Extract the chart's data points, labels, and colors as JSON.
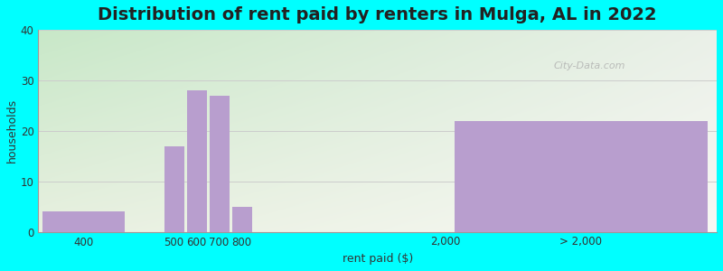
{
  "title": "Distribution of rent paid by renters in Mulga, AL in 2022",
  "xlabel": "rent paid ($)",
  "ylabel": "households",
  "background_color": "#00ffff",
  "plot_bg_color_topleft": "#d8eeda",
  "plot_bg_color_right": "#f5f5f0",
  "bar_color": "#b89ece",
  "ylim": [
    0,
    40
  ],
  "yticks": [
    0,
    10,
    20,
    30,
    40
  ],
  "grid_color": "#cccccc",
  "title_fontsize": 14,
  "axis_label_fontsize": 9,
  "tick_fontsize": 8.5,
  "watermark": "City-Data.com",
  "bars": [
    {
      "label": "400",
      "x": 100,
      "value": 4
    },
    {
      "label": "500",
      "x": 200,
      "value": 17
    },
    {
      "label": "600",
      "x": 225,
      "value": 28
    },
    {
      "label": "700",
      "x": 250,
      "value": 27
    },
    {
      "label": "800",
      "x": 275,
      "value": 5
    },
    {
      "label": "2,000",
      "x": 500,
      "value": 0
    },
    {
      "label": "> 2,000",
      "x": 650,
      "value": 22
    }
  ],
  "xlim": [
    50,
    800
  ],
  "xtick_positions": [
    100,
    200,
    225,
    250,
    275,
    500,
    650
  ],
  "xtick_labels": [
    "400",
    "500",
    "600",
    "700",
    "800",
    "2,000",
    "> 2,000"
  ],
  "bar_widths_data": [
    90,
    22,
    22,
    22,
    22,
    0,
    280
  ]
}
